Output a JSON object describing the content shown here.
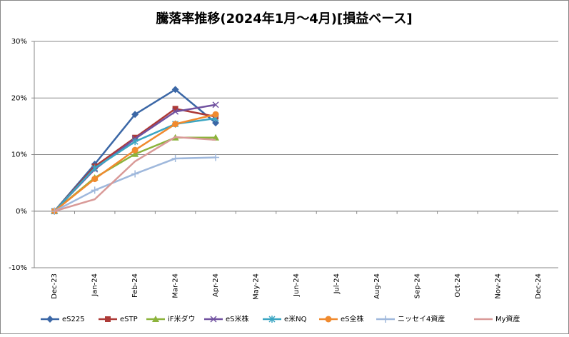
{
  "chart_data": {
    "type": "line",
    "title": "騰落率推移(2024年1月～4月)[損益ベース]",
    "categories": [
      "Dec-23",
      "Jan-24",
      "Feb-24",
      "Mar-24",
      "Apr-24",
      "May-24",
      "Jun-24",
      "Jul-24",
      "Aug-24",
      "Sep-24",
      "Oct-24",
      "Nov-24",
      "Dec-24"
    ],
    "ylim": [
      -10,
      30
    ],
    "yticks": [
      {
        "value": -10,
        "label": "-10%"
      },
      {
        "value": 0,
        "label": "0%"
      },
      {
        "value": 10,
        "label": "10%"
      },
      {
        "value": 20,
        "label": "20%"
      },
      {
        "value": 30,
        "label": "30%"
      }
    ],
    "grid": true,
    "legend": "bottom",
    "series": [
      {
        "name": "eS225",
        "color": "#3b67a6",
        "marker": "diamond",
        "values": [
          0,
          8.3,
          17.1,
          21.5,
          15.6,
          null,
          null,
          null,
          null,
          null,
          null,
          null,
          null
        ]
      },
      {
        "name": "eSTP",
        "color": "#ad3a37",
        "marker": "square",
        "values": [
          0,
          7.9,
          13.0,
          18.1,
          16.7,
          null,
          null,
          null,
          null,
          null,
          null,
          null,
          null
        ]
      },
      {
        "name": "iF米ダウ",
        "color": "#8cb33b",
        "marker": "triangle",
        "values": [
          0,
          5.9,
          10.1,
          13.0,
          13.0,
          null,
          null,
          null,
          null,
          null,
          null,
          null,
          null
        ]
      },
      {
        "name": "eS米株",
        "color": "#7152a0",
        "marker": "x",
        "values": [
          0,
          7.4,
          12.8,
          17.6,
          18.8,
          null,
          null,
          null,
          null,
          null,
          null,
          null,
          null
        ]
      },
      {
        "name": "e米NQ",
        "color": "#3aa5c2",
        "marker": "star",
        "values": [
          0,
          7.6,
          12.3,
          15.4,
          16.4,
          null,
          null,
          null,
          null,
          null,
          null,
          null,
          null
        ]
      },
      {
        "name": "eS全株",
        "color": "#f08a2e",
        "marker": "circle",
        "values": [
          0,
          5.7,
          10.8,
          15.4,
          17.1,
          null,
          null,
          null,
          null,
          null,
          null,
          null,
          null
        ]
      },
      {
        "name": "ニッセイ4資産",
        "color": "#9fb8dc",
        "marker": "plus",
        "values": [
          0,
          3.7,
          6.6,
          9.3,
          9.5,
          null,
          null,
          null,
          null,
          null,
          null,
          null,
          null
        ]
      },
      {
        "name": "My資産",
        "color": "#d99a98",
        "marker": "none",
        "values": [
          0,
          2.1,
          8.8,
          13.1,
          12.6,
          null,
          null,
          null,
          null,
          null,
          null,
          null,
          null
        ]
      }
    ]
  }
}
